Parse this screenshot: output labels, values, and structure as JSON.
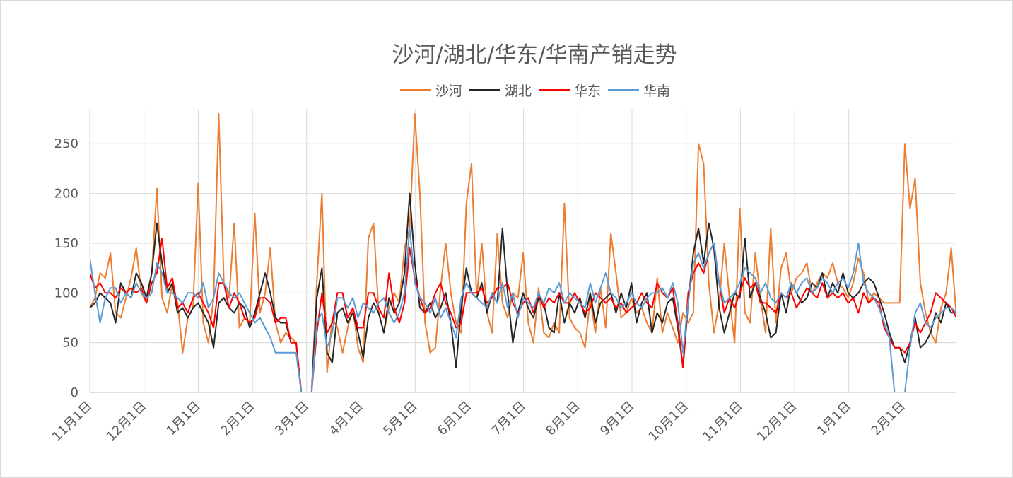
{
  "chart_data": {
    "type": "line",
    "title": "沙河/湖北/华东/华南产销走势",
    "xlabel": "",
    "ylabel": "",
    "ylim": [
      0,
      285
    ],
    "yticks": [
      "0",
      "50",
      "100",
      "150",
      "200",
      "250"
    ],
    "xticks": [
      "11月1日",
      "12月1日",
      "1月1日",
      "2月1日",
      "3月1日",
      "4月1日",
      "5月1日",
      "6月1日",
      "7月1日",
      "8月1日",
      "9月1日",
      "10月1日",
      "11月1日",
      "12月1日",
      "1月1日",
      "2月1日"
    ],
    "grid": true,
    "legend_position": "top",
    "series": [
      {
        "name": "沙河",
        "color": "#ED7D31",
        "values": [
          85,
          95,
          120,
          115,
          140,
          80,
          75,
          95,
          115,
          145,
          100,
          90,
          120,
          205,
          95,
          80,
          110,
          90,
          40,
          75,
          85,
          210,
          70,
          50,
          95,
          280,
          110,
          95,
          170,
          65,
          75,
          70,
          180,
          80,
          100,
          145,
          70,
          50,
          60,
          55,
          50,
          0,
          0,
          0,
          110,
          200,
          20,
          75,
          65,
          40,
          65,
          85,
          45,
          30,
          155,
          170,
          80,
          60,
          85,
          100,
          90,
          145,
          165,
          280,
          200,
          70,
          40,
          45,
          105,
          150,
          100,
          70,
          60,
          190,
          230,
          95,
          150,
          80,
          60,
          160,
          90,
          75,
          100,
          95,
          140,
          70,
          50,
          105,
          60,
          55,
          70,
          60,
          190,
          75,
          65,
          60,
          45,
          95,
          60,
          105,
          65,
          160,
          120,
          75,
          80,
          95,
          80,
          85,
          70,
          60,
          115,
          60,
          80,
          65,
          50,
          80,
          70,
          80,
          250,
          230,
          110,
          60,
          90,
          150,
          95,
          50,
          185,
          80,
          70,
          140,
          95,
          60,
          165,
          70,
          125,
          140,
          100,
          115,
          120,
          130,
          100,
          110,
          120,
          115,
          130,
          110,
          105,
          95,
          110,
          135,
          120,
          90,
          100,
          95,
          90,
          90,
          90,
          90,
          250,
          185,
          215,
          110,
          80,
          60,
          50,
          85,
          100,
          145,
          75
        ]
      },
      {
        "name": "湖北",
        "color": "#262626",
        "values": [
          85,
          90,
          100,
          95,
          90,
          70,
          110,
          100,
          95,
          120,
          110,
          95,
          120,
          170,
          130,
          100,
          110,
          80,
          85,
          75,
          85,
          90,
          80,
          70,
          45,
          90,
          95,
          85,
          80,
          90,
          85,
          65,
          80,
          100,
          120,
          100,
          75,
          70,
          70,
          50,
          50,
          0,
          0,
          0,
          95,
          125,
          40,
          30,
          80,
          85,
          70,
          80,
          60,
          35,
          75,
          90,
          80,
          60,
          95,
          80,
          90,
          120,
          200,
          130,
          85,
          80,
          90,
          75,
          85,
          100,
          70,
          25,
          85,
          125,
          100,
          95,
          110,
          80,
          100,
          90,
          165,
          100,
          50,
          80,
          100,
          85,
          75,
          95,
          90,
          65,
          60,
          100,
          70,
          90,
          80,
          95,
          75,
          100,
          70,
          90,
          95,
          100,
          80,
          100,
          85,
          110,
          70,
          90,
          100,
          60,
          80,
          70,
          90,
          95,
          65,
          25,
          90,
          140,
          165,
          130,
          170,
          145,
          85,
          60,
          80,
          100,
          95,
          155,
          95,
          110,
          95,
          80,
          55,
          60,
          100,
          80,
          110,
          100,
          90,
          95,
          110,
          105,
          120,
          95,
          110,
          100,
          120,
          100,
          95,
          100,
          110,
          115,
          110,
          95,
          80,
          60,
          45,
          45,
          30,
          50,
          75,
          45,
          50,
          60,
          80,
          70,
          90,
          80,
          80
        ]
      },
      {
        "name": "华东",
        "color": "#FF0000",
        "values": [
          120,
          105,
          110,
          100,
          100,
          95,
          105,
          100,
          105,
          100,
          105,
          90,
          110,
          120,
          155,
          105,
          115,
          85,
          90,
          80,
          95,
          100,
          90,
          80,
          65,
          110,
          110,
          85,
          100,
          90,
          75,
          70,
          75,
          95,
          95,
          90,
          70,
          75,
          75,
          50,
          50,
          0,
          0,
          0,
          60,
          100,
          60,
          70,
          100,
          100,
          75,
          85,
          65,
          65,
          100,
          100,
          85,
          75,
          120,
          85,
          70,
          90,
          145,
          115,
          95,
          80,
          85,
          100,
          110,
          90,
          80,
          65,
          70,
          100,
          100,
          100,
          105,
          90,
          95,
          105,
          105,
          110,
          90,
          80,
          90,
          95,
          80,
          100,
          85,
          95,
          90,
          100,
          90,
          90,
          100,
          90,
          80,
          85,
          100,
          95,
          90,
          95,
          85,
          90,
          80,
          85,
          90,
          100,
          90,
          85,
          110,
          100,
          95,
          105,
          70,
          25,
          100,
          120,
          130,
          120,
          140,
          150,
          110,
          80,
          95,
          85,
          100,
          115,
          105,
          110,
          90,
          90,
          85,
          80,
          100,
          95,
          100,
          85,
          95,
          105,
          100,
          95,
          110,
          95,
          100,
          95,
          100,
          90,
          95,
          80,
          100,
          90,
          95,
          90,
          65,
          55,
          45,
          45,
          40,
          50,
          70,
          60,
          70,
          80,
          100,
          95,
          90,
          85,
          75
        ]
      },
      {
        "name": "华南",
        "color": "#5B9BD5",
        "values": [
          135,
          100,
          70,
          95,
          105,
          105,
          90,
          100,
          95,
          110,
          100,
          95,
          100,
          130,
          120,
          100,
          100,
          95,
          90,
          100,
          100,
          95,
          110,
          85,
          95,
          120,
          110,
          100,
          95,
          100,
          90,
          80,
          70,
          75,
          65,
          55,
          40,
          40,
          40,
          40,
          40,
          0,
          0,
          0,
          70,
          80,
          45,
          60,
          95,
          95,
          85,
          95,
          75,
          90,
          85,
          80,
          90,
          95,
          80,
          70,
          80,
          100,
          165,
          110,
          95,
          90,
          80,
          95,
          75,
          85,
          70,
          55,
          95,
          110,
          100,
          95,
          90,
          85,
          100,
          90,
          110,
          85,
          100,
          75,
          95,
          90,
          85,
          100,
          90,
          105,
          100,
          110,
          90,
          100,
          95,
          90,
          85,
          110,
          90,
          105,
          120,
          100,
          95,
          85,
          90,
          100,
          90,
          85,
          95,
          100,
          100,
          105,
          95,
          110,
          90,
          40,
          90,
          130,
          140,
          125,
          140,
          150,
          110,
          90,
          95,
          100,
          110,
          125,
          120,
          115,
          100,
          110,
          95,
          90,
          100,
          95,
          110,
          100,
          110,
          115,
          100,
          105,
          115,
          110,
          100,
          110,
          115,
          105,
          120,
          150,
          110,
          100,
          95,
          85,
          70,
          55,
          0,
          0,
          0,
          45,
          80,
          90,
          70,
          65,
          75,
          80,
          85,
          85,
          80
        ]
      }
    ]
  }
}
